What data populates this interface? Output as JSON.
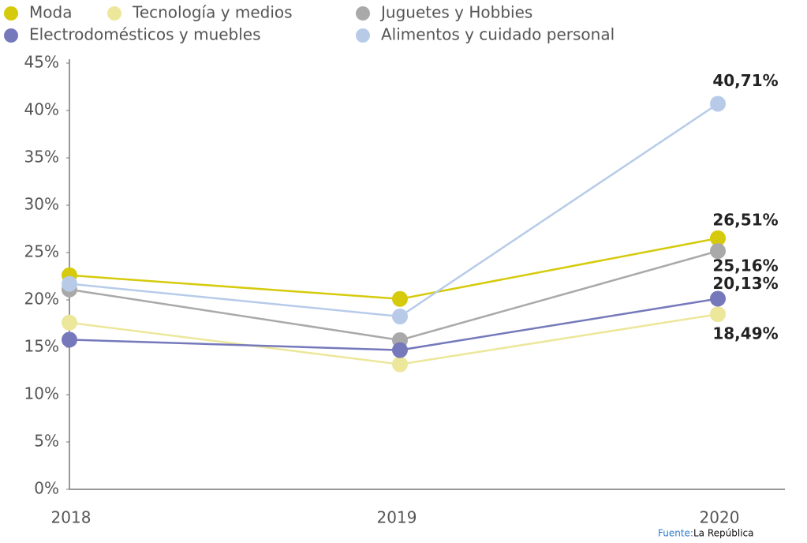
{
  "chart_data": {
    "type": "line",
    "categories": [
      "2018",
      "2019",
      "2020"
    ],
    "series": [
      {
        "name": "Moda",
        "color": "#d6ca0c",
        "values": [
          22.6,
          20.1,
          26.51
        ],
        "value_labels": [
          null,
          null,
          "26,51%"
        ]
      },
      {
        "name": "Tecnología y medios",
        "color": "#ece79a",
        "values": [
          17.6,
          13.2,
          18.49
        ],
        "value_labels": [
          null,
          null,
          "18,49%"
        ]
      },
      {
        "name": "Juguetes y Hobbies",
        "color": "#aaa9a9",
        "values": [
          21.1,
          15.75,
          25.16
        ],
        "value_labels": [
          null,
          null,
          "25,16%"
        ]
      },
      {
        "name": "Electrodomésticos y muebles",
        "color": "#7579bb",
        "values": [
          15.8,
          14.7,
          20.13
        ],
        "value_labels": [
          null,
          null,
          "20,13%"
        ]
      },
      {
        "name": "Alimentos y cuidado personal",
        "color": "#b7cbe9",
        "values": [
          21.7,
          18.25,
          40.71
        ],
        "value_labels": [
          null,
          null,
          "40,71%"
        ]
      }
    ],
    "ylim": [
      0,
      45
    ],
    "yticks": [
      {
        "value": 0,
        "label": "0%"
      },
      {
        "value": 5,
        "label": "5%"
      },
      {
        "value": 10,
        "label": "10%"
      },
      {
        "value": 15,
        "label": "15%"
      },
      {
        "value": 20,
        "label": "20%"
      },
      {
        "value": 25,
        "label": "25%"
      },
      {
        "value": 30,
        "label": "30%"
      },
      {
        "value": 35,
        "label": "35%"
      },
      {
        "value": 40,
        "label": "40%"
      },
      {
        "value": 45,
        "label": "45%"
      }
    ],
    "grid": false,
    "source": {
      "label": "Fuente:",
      "text": "La República"
    }
  }
}
